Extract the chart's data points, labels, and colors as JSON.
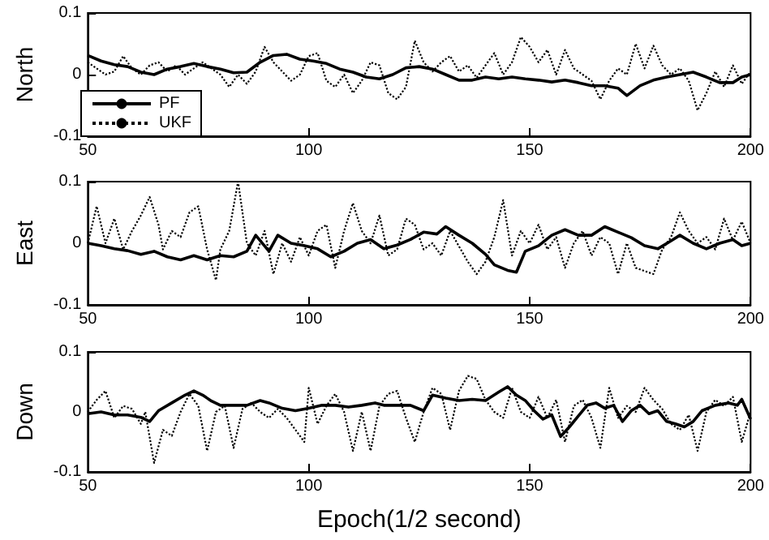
{
  "chart_data": [
    {
      "type": "line",
      "ylabel": "North",
      "xlim": [
        50,
        200
      ],
      "ylim": [
        -0.1,
        0.1
      ],
      "xticks": [
        50,
        100,
        150,
        200
      ],
      "yticks": [
        -0.1,
        0,
        0.1
      ],
      "legend": "bottom left",
      "grid": false,
      "series": [
        {
          "name": "PF",
          "color": "#000000",
          "line_style": "solid",
          "x": [
            50,
            53,
            56,
            59,
            62,
            65,
            68,
            71,
            74,
            77,
            80,
            83,
            86,
            89,
            92,
            95,
            98,
            101,
            104,
            107,
            110,
            113,
            116,
            119,
            122,
            125,
            128,
            131,
            134,
            137,
            140,
            143,
            146,
            149,
            152,
            155,
            158,
            161,
            164,
            167,
            170,
            172,
            175,
            178,
            181,
            184,
            187,
            190,
            193,
            196,
            198,
            200
          ],
          "values": [
            0.031,
            0.022,
            0.016,
            0.013,
            0.004,
            0,
            0.009,
            0.013,
            0.018,
            0.013,
            0.009,
            0.003,
            0.004,
            0.02,
            0.031,
            0.033,
            0.025,
            0.022,
            0.018,
            0.009,
            0.004,
            -0.004,
            -0.007,
            0,
            0.011,
            0.013,
            0.009,
            0,
            -0.009,
            -0.009,
            -0.004,
            -0.007,
            -0.004,
            -0.007,
            -0.009,
            -0.012,
            -0.009,
            -0.013,
            -0.018,
            -0.018,
            -0.022,
            -0.034,
            -0.018,
            -0.009,
            -0.004,
            0,
            0.004,
            -0.004,
            -0.013,
            -0.013,
            -0.004,
            0
          ]
        },
        {
          "name": "UKF",
          "color": "#000000",
          "line_style": "dotted",
          "x": [
            50,
            52,
            54,
            56,
            58,
            60,
            62,
            64,
            66,
            68,
            70,
            72,
            74,
            76,
            78,
            80,
            82,
            84,
            86,
            88,
            90,
            92,
            94,
            96,
            98,
            100,
            102,
            104,
            106,
            108,
            110,
            112,
            114,
            116,
            118,
            120,
            122,
            124,
            126,
            128,
            130,
            132,
            134,
            136,
            138,
            140,
            142,
            144,
            146,
            148,
            150,
            152,
            154,
            156,
            158,
            160,
            162,
            164,
            166,
            168,
            170,
            172,
            174,
            176,
            178,
            180,
            182,
            184,
            186,
            188,
            190,
            192,
            194,
            196,
            198,
            200
          ],
          "values": [
            0.02,
            0.01,
            0.0,
            0.005,
            0.03,
            0.01,
            0.0,
            0.015,
            0.02,
            0.005,
            0.015,
            0.0,
            0.01,
            0.02,
            0.01,
            0.0,
            -0.02,
            0.0,
            -0.015,
            0.005,
            0.045,
            0.02,
            0.005,
            -0.01,
            0.0,
            0.03,
            0.035,
            -0.01,
            -0.02,
            0.0,
            -0.03,
            -0.01,
            0.02,
            0.015,
            -0.03,
            -0.04,
            -0.02,
            0.055,
            0.02,
            0.005,
            0.02,
            0.03,
            0.005,
            0.015,
            -0.005,
            0.015,
            0.035,
            0.0,
            0.02,
            0.061,
            0.045,
            0.02,
            0.04,
            0.0,
            0.04,
            0.01,
            0.0,
            -0.01,
            -0.04,
            -0.01,
            0.01,
            0.0,
            0.05,
            0.01,
            0.047,
            0.015,
            0.0,
            0.01,
            -0.01,
            -0.058,
            -0.03,
            0.005,
            -0.02,
            0.015,
            -0.015,
            0.005
          ]
        }
      ]
    },
    {
      "type": "line",
      "ylabel": "East",
      "xlim": [
        50,
        200
      ],
      "ylim": [
        -0.1,
        0.1
      ],
      "xticks": [
        50,
        100,
        150,
        200
      ],
      "yticks": [
        -0.1,
        0,
        0.1
      ],
      "grid": false,
      "series": [
        {
          "color": "#000000",
          "line_style": "solid",
          "x": [
            50,
            53,
            56,
            59,
            62,
            65,
            68,
            71,
            74,
            77,
            80,
            83,
            86,
            88,
            91,
            93,
            96,
            99,
            102,
            105,
            108,
            111,
            114,
            117,
            120,
            123,
            126,
            129,
            131,
            134,
            137,
            140,
            142,
            145,
            147,
            149,
            152,
            155,
            158,
            161,
            164,
            167,
            170,
            173,
            176,
            179,
            182,
            184,
            187,
            190,
            193,
            196,
            198,
            200
          ],
          "values": [
            0,
            -0.004,
            -0.009,
            -0.012,
            -0.018,
            -0.013,
            -0.022,
            -0.027,
            -0.02,
            -0.027,
            -0.02,
            -0.022,
            -0.013,
            0.013,
            -0.013,
            0.013,
            0,
            -0.004,
            -0.009,
            -0.022,
            -0.013,
            0,
            0.006,
            -0.009,
            -0.003,
            0.006,
            0.018,
            0.015,
            0.027,
            0.013,
            0,
            -0.018,
            -0.035,
            -0.044,
            -0.047,
            -0.013,
            -0.004,
            0.013,
            0.022,
            0.013,
            0.013,
            0.027,
            0.018,
            0.009,
            -0.004,
            -0.009,
            0.004,
            0.013,
            0,
            -0.009,
            0,
            0.006,
            -0.004,
            0
          ]
        },
        {
          "color": "#000000",
          "line_style": "dotted",
          "x": [
            50,
            52,
            54,
            56,
            58,
            60,
            62,
            64,
            66,
            67,
            69,
            71,
            73,
            75,
            77,
            79,
            80,
            82,
            84,
            86,
            88,
            90,
            92,
            94,
            96,
            98,
            100,
            102,
            104,
            106,
            108,
            110,
            112,
            114,
            116,
            118,
            120,
            122,
            124,
            126,
            128,
            130,
            132,
            134,
            136,
            138,
            140,
            142,
            144,
            146,
            148,
            150,
            152,
            154,
            156,
            158,
            160,
            162,
            164,
            166,
            168,
            170,
            172,
            174,
            176,
            178,
            180,
            182,
            184,
            186,
            188,
            190,
            192,
            194,
            196,
            198,
            200
          ],
          "values": [
            0.0,
            0.06,
            0.0,
            0.04,
            -0.01,
            0.02,
            0.045,
            0.075,
            0.03,
            -0.01,
            0.02,
            0.01,
            0.05,
            0.06,
            -0.01,
            -0.06,
            -0.01,
            0.02,
            0.1,
            0.0,
            -0.02,
            0.02,
            -0.05,
            0.0,
            -0.03,
            0.01,
            -0.02,
            0.02,
            0.03,
            -0.04,
            0.02,
            0.065,
            0.02,
            0.0,
            0.045,
            -0.02,
            -0.01,
            0.04,
            0.03,
            -0.01,
            0.0,
            -0.02,
            0.02,
            -0.005,
            -0.03,
            -0.05,
            -0.03,
            0.01,
            0.07,
            -0.02,
            0.02,
            0.0,
            0.03,
            -0.01,
            0.01,
            -0.04,
            0.0,
            0.02,
            -0.02,
            0.01,
            0.0,
            -0.05,
            0.0,
            -0.04,
            -0.045,
            -0.05,
            -0.01,
            0.01,
            0.05,
            0.02,
            0.0,
            0.01,
            -0.01,
            0.04,
            0.005,
            0.035,
            0.0
          ]
        }
      ]
    },
    {
      "type": "line",
      "ylabel": "Down",
      "xlabel": "Epoch(1/2 second)",
      "xlim": [
        50,
        200
      ],
      "ylim": [
        -0.1,
        0.1
      ],
      "xticks": [
        50,
        100,
        150,
        200
      ],
      "yticks": [
        -0.1,
        0,
        0.1
      ],
      "grid": false,
      "series": [
        {
          "color": "#000000",
          "line_style": "solid",
          "x": [
            50,
            53,
            56,
            59,
            62,
            64,
            66,
            69,
            72,
            74,
            76,
            78,
            80,
            83,
            86,
            89,
            91,
            94,
            97,
            100,
            103,
            106,
            109,
            112,
            115,
            117,
            120,
            123,
            126,
            128,
            131,
            134,
            137,
            140,
            143,
            145,
            147,
            149,
            151,
            153,
            155,
            157,
            159,
            161,
            163,
            165,
            167,
            169,
            171,
            173,
            175,
            177,
            179,
            181,
            183,
            185,
            187,
            189,
            192,
            195,
            197,
            198,
            200
          ],
          "values": [
            -0.003,
            0,
            -0.005,
            -0.005,
            -0.009,
            -0.016,
            0.002,
            0.015,
            0.028,
            0.035,
            0.028,
            0.018,
            0.011,
            0.011,
            0.011,
            0.019,
            0.015,
            0.006,
            0.002,
            0.006,
            0.011,
            0.011,
            0.008,
            0.011,
            0.015,
            0.011,
            0.011,
            0.011,
            0.002,
            0.028,
            0.023,
            0.019,
            0.021,
            0.019,
            0.033,
            0.042,
            0.028,
            0.019,
            0.002,
            -0.012,
            -0.005,
            -0.041,
            -0.025,
            -0.007,
            0.011,
            0.015,
            0.006,
            0.011,
            -0.016,
            0.002,
            0.011,
            -0.003,
            0.002,
            -0.016,
            -0.02,
            -0.025,
            -0.016,
            0.002,
            0.011,
            0.015,
            0.011,
            0.021,
            -0.012
          ]
        },
        {
          "color": "#000000",
          "line_style": "dotted",
          "x": [
            50,
            52,
            54,
            56,
            58,
            60,
            62,
            63,
            65,
            67,
            69,
            71,
            73,
            75,
            77,
            79,
            81,
            83,
            85,
            87,
            89,
            91,
            93,
            95,
            97,
            99,
            100,
            102,
            104,
            106,
            108,
            110,
            112,
            114,
            116,
            118,
            120,
            122,
            124,
            126,
            128,
            130,
            132,
            134,
            136,
            138,
            140,
            142,
            144,
            146,
            148,
            150,
            152,
            154,
            156,
            158,
            160,
            162,
            164,
            166,
            168,
            170,
            172,
            174,
            176,
            178,
            180,
            182,
            184,
            186,
            188,
            190,
            192,
            194,
            196,
            198,
            200
          ],
          "values": [
            0.0,
            0.02,
            0.035,
            -0.01,
            0.01,
            0.005,
            -0.02,
            0.0,
            -0.085,
            -0.03,
            -0.04,
            0.0,
            0.03,
            0.01,
            -0.065,
            0.0,
            0.01,
            -0.06,
            0.005,
            0.015,
            0.0,
            -0.01,
            0.005,
            -0.01,
            -0.03,
            -0.05,
            0.04,
            -0.02,
            0.01,
            0.03,
            0.0,
            -0.065,
            0.0,
            -0.065,
            0.01,
            0.03,
            0.035,
            -0.01,
            -0.05,
            0.0,
            0.04,
            0.03,
            -0.03,
            0.035,
            0.06,
            0.055,
            0.02,
            0.0,
            -0.01,
            0.04,
            0.0,
            -0.01,
            0.025,
            -0.01,
            0.02,
            -0.05,
            0.01,
            0.02,
            -0.01,
            -0.06,
            0.04,
            -0.01,
            0.01,
            0.0,
            0.04,
            0.02,
            0.005,
            -0.02,
            -0.03,
            -0.005,
            -0.065,
            0.0,
            0.02,
            0.01,
            0.025,
            -0.05,
            0.0
          ]
        }
      ]
    }
  ]
}
